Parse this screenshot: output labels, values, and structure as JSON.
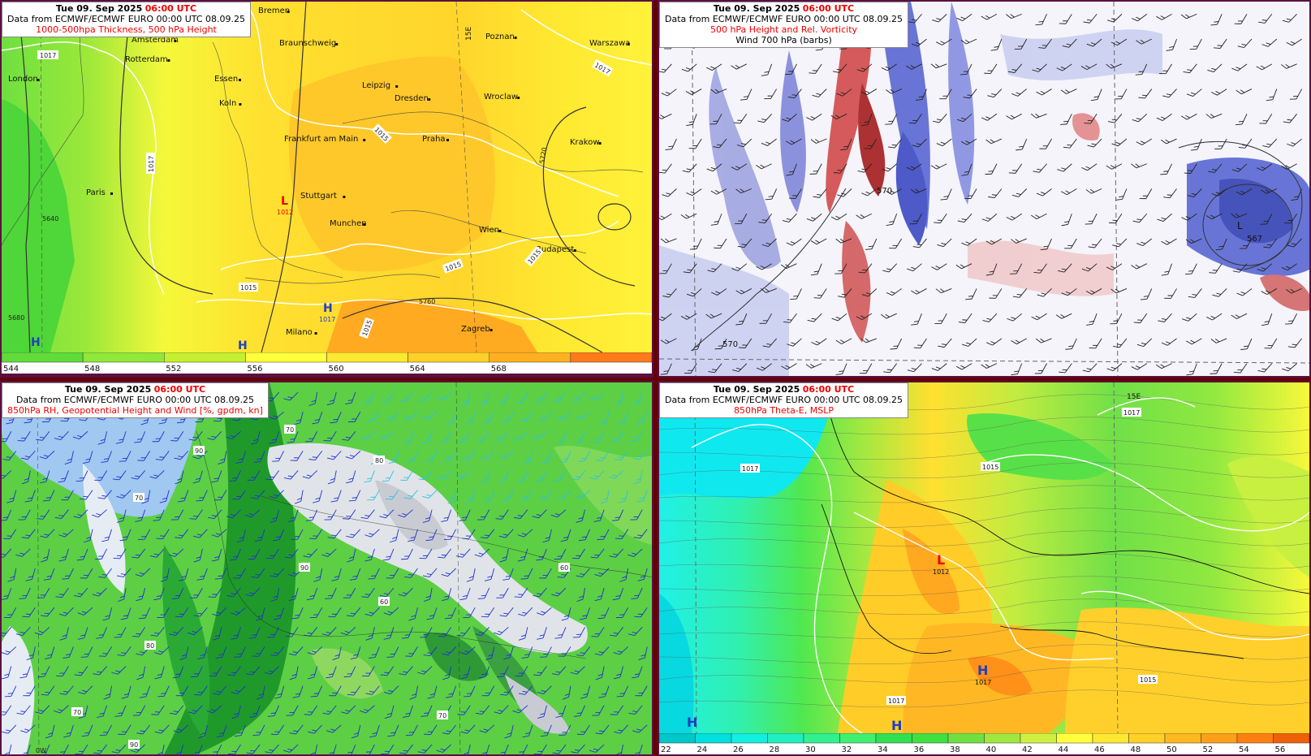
{
  "panels": {
    "tl": {
      "title_date": "Tue 09. Sep 2025",
      "title_time": "06:00 UTC",
      "source": "Data from ECMWF/ECMWF EURO 00:00 UTC 08.09.25",
      "product": "1000-500hpa Thickness, 500 hPa Height",
      "cities": [
        {
          "name": "Bremen"
        },
        {
          "name": "Amsterdam"
        },
        {
          "name": "Rotterdam"
        },
        {
          "name": "London"
        },
        {
          "name": "Essen"
        },
        {
          "name": "Koln"
        },
        {
          "name": "Braunschweig"
        },
        {
          "name": "Poznan"
        },
        {
          "name": "Warszawa"
        },
        {
          "name": "Leipzig"
        },
        {
          "name": "Dresden"
        },
        {
          "name": "Wroclaw"
        },
        {
          "name": "Frankfurt am Main"
        },
        {
          "name": "Praha"
        },
        {
          "name": "Krakow"
        },
        {
          "name": "Paris"
        },
        {
          "name": "Stuttgart"
        },
        {
          "name": "Munchen"
        },
        {
          "name": "Wien"
        },
        {
          "name": "Budapest"
        },
        {
          "name": "Milano"
        },
        {
          "name": "Zagreb"
        }
      ],
      "labels": {
        "low": "L",
        "low_value": "1012",
        "high": "H",
        "high_value": "1017",
        "meridian": "15E",
        "iso1": "1017",
        "iso2": "1015",
        "h5640": "5640",
        "h5720": "5720",
        "h5760": "5760",
        "h5680": "5680"
      },
      "colorbar": [
        "544",
        "548",
        "552",
        "556",
        "560",
        "564",
        "568"
      ],
      "colorbar_colors": [
        "#5fdc3a",
        "#8fe83a",
        "#c5f030",
        "#ffff3c",
        "#ffe830",
        "#ffd028",
        "#ffb020",
        "#ff7a1a"
      ]
    },
    "tr": {
      "title_date": "Tue 09. Sep 2025",
      "title_time": "06:00 UTC",
      "source": "Data from ECMWF/ECMWF EURO 00:00 UTC 08.09.25",
      "product": "500 hPa Height and Rel. Vorticity",
      "product2": "Wind 700 hPa (barbs)",
      "labels": {
        "h570a": "570",
        "h570b": "570",
        "h567": "567",
        "low": "L"
      }
    },
    "bl": {
      "title_date": "Tue 09. Sep 2025",
      "title_time": "06:00 UTC",
      "source": "Data from ECMWF/ECMWF EURO 00:00 UTC 08.09.25",
      "product": "850hPa RH, Geopotential Height and Wind [%, gpdm, kn]",
      "labels": {
        "rh70": "70",
        "rh80": "80",
        "rh90": "90",
        "rh60": "60",
        "lon0": "0W"
      }
    },
    "br": {
      "title_date": "Tue 09. Sep 2025",
      "title_time": "06:00 UTC",
      "source": "Data from ECMWF/ECMWF EURO 00:00 UTC 08.09.25",
      "product": "850hPa Theta-E, MSLP",
      "labels": {
        "low": "L",
        "low_value": "1012",
        "high": "H",
        "high_value": "1017",
        "iso1017": "1017",
        "iso1015": "1015",
        "meridian": "15E"
      },
      "colorbar": [
        "22",
        "24",
        "26",
        "28",
        "30",
        "32",
        "34",
        "36",
        "38",
        "40",
        "42",
        "44",
        "46",
        "48",
        "50",
        "52",
        "54",
        "56"
      ],
      "colorbar_colors": [
        "#00c8c8",
        "#00e0e0",
        "#10f0e0",
        "#20f0c0",
        "#30f090",
        "#40f070",
        "#30e050",
        "#40e040",
        "#70e040",
        "#a0e840",
        "#d0f040",
        "#ffff3c",
        "#ffe830",
        "#ffd028",
        "#ffb820",
        "#ffa018",
        "#ff8010",
        "#f06008"
      ]
    }
  }
}
